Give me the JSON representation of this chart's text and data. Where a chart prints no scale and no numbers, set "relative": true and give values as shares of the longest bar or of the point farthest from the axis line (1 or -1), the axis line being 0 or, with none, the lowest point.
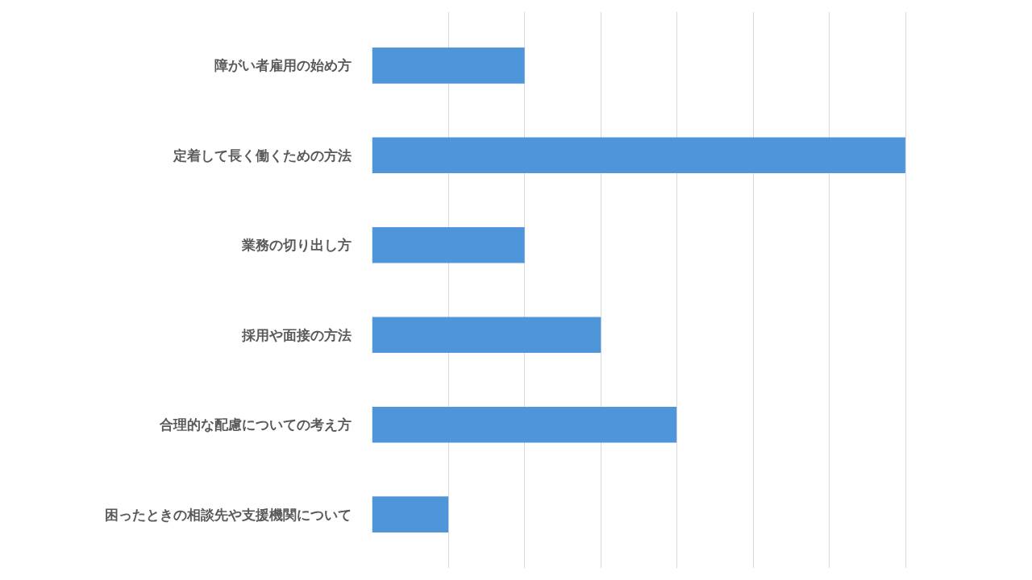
{
  "chart_data": {
    "type": "bar",
    "orientation": "horizontal",
    "relative": true,
    "grid": "x",
    "categories": [
      "障がい者雇用の始め方",
      "定着して長く働くための方法",
      "業務の切り出し方",
      "採用や面接の方法",
      "合理的な配慮についての考え方",
      "困ったときの相談先や支援機関について"
    ],
    "values": [
      0.286,
      1,
      0.286,
      0.429,
      0.571,
      0.143
    ],
    "color": "#4f95d9"
  }
}
